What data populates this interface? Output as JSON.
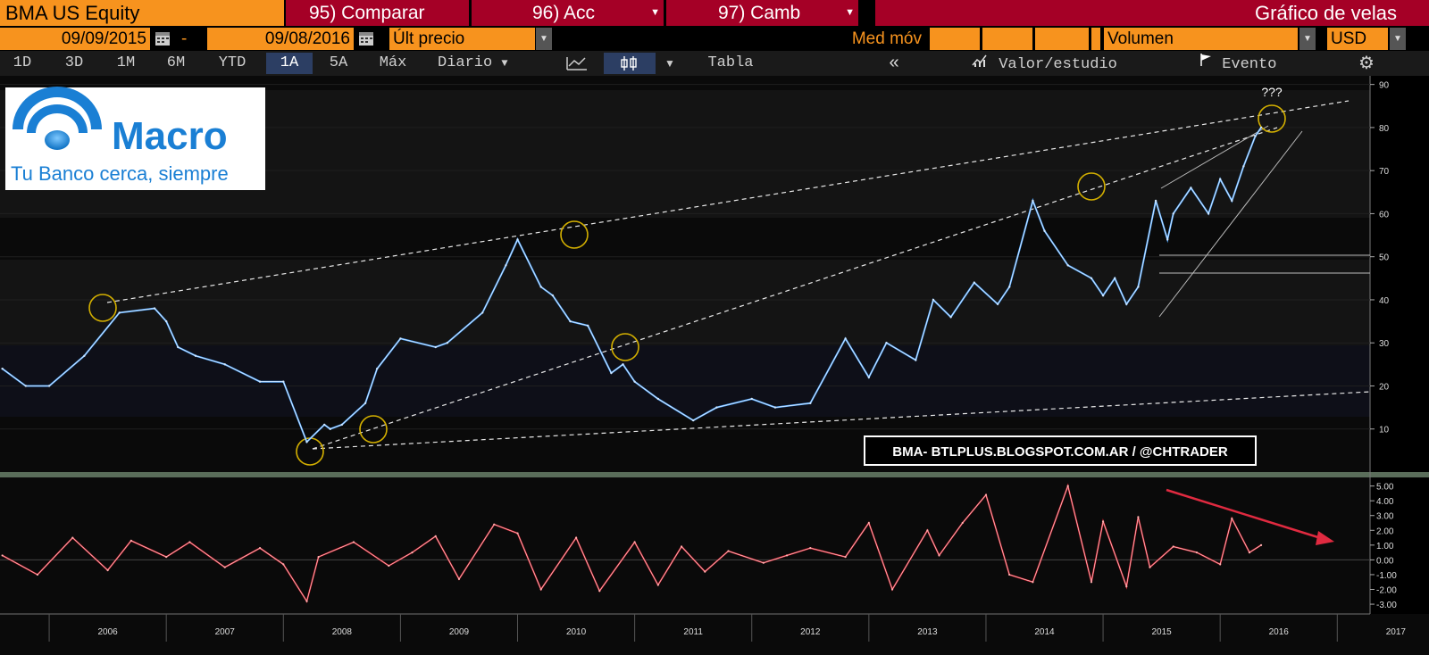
{
  "toolbar": {
    "ticker": "BMA US Equity",
    "compare": "95) Comparar",
    "acc": "96) Acc",
    "camb": "97) Camb",
    "chart_title": "Gráfico de velas",
    "date_start": "09/09/2015",
    "date_sep": "-",
    "date_end": "09/08/2016",
    "price_field": "Últ precio",
    "ma_label": "Med móv",
    "volume_label": "Volumen",
    "currency": "USD",
    "timeframes": [
      "1D",
      "3D",
      "1M",
      "6M",
      "YTD",
      "1A",
      "5A",
      "Máx"
    ],
    "active_timeframe": "1A",
    "period": "Diario",
    "table_label": "Tabla",
    "value_study": "Valor/estudio",
    "event": "Evento",
    "icons": [
      "calendar-icon",
      "line-chart-icon",
      "candle-chart-icon",
      "double-chevron-left-icon",
      "study-icon",
      "flag-icon",
      "gear-icon"
    ]
  },
  "logo": {
    "brand": "Macro",
    "slogan": "Tu Banco cerca, siempre"
  },
  "watermark": "BMA- BTLPLUS.BLOGSPOT.COM.AR / @CHTRADER",
  "annotation": "???",
  "colors": {
    "toolbar_orange": "#f7931e",
    "toolbar_red": "#a50026",
    "price_line": "#4aa3ff",
    "oscillator_line": "#e02030",
    "trendline": "#e8e8e8",
    "circle": "#d4b000"
  },
  "chart_data": [
    {
      "type": "line",
      "title": "",
      "x_ticks": [
        "2006",
        "2007",
        "2008",
        "2009",
        "2010",
        "2011",
        "2012",
        "2013",
        "2014",
        "2015",
        "2016",
        "2017"
      ],
      "y_ticks": [
        10,
        20,
        30,
        40,
        50,
        60,
        70,
        80,
        90
      ],
      "ylim": [
        0,
        92
      ],
      "xlim": [
        2005.58,
        2017.28
      ],
      "grid": true,
      "series": [
        {
          "x": [
            2005.6,
            2005.8,
            2006.0,
            2006.3,
            2006.6,
            2006.9,
            2007.0,
            2007.1,
            2007.25,
            2007.5,
            2007.8,
            2008.0,
            2008.2,
            2008.35,
            2008.4,
            2008.5,
            2008.7,
            2008.8,
            2009.0,
            2009.3,
            2009.4,
            2009.7,
            2009.9,
            2010.0,
            2010.2,
            2010.3,
            2010.45,
            2010.6,
            2010.8,
            2010.9,
            2011.0,
            2011.2,
            2011.5,
            2011.7,
            2012.0,
            2012.2,
            2012.5,
            2012.8,
            2013.0,
            2013.15,
            2013.4,
            2013.55,
            2013.7,
            2013.9,
            2014.1,
            2014.2,
            2014.4,
            2014.5,
            2014.7,
            2014.9,
            2015.0,
            2015.1,
            2015.2,
            2015.3,
            2015.45,
            2015.55,
            2015.6,
            2015.75,
            2015.9,
            2016.0,
            2016.1,
            2016.2,
            2016.3,
            2016.35
          ],
          "y": [
            24,
            20,
            20,
            27,
            37,
            38,
            35,
            29,
            27,
            25,
            21,
            21,
            7,
            11,
            10,
            11,
            16,
            24,
            31,
            29,
            30,
            37,
            48,
            54,
            43,
            41,
            35,
            34,
            23,
            25,
            21,
            17,
            12,
            15,
            17,
            15,
            16,
            31,
            22,
            30,
            26,
            40,
            36,
            44,
            39,
            43,
            63,
            56,
            48,
            45,
            41,
            45,
            39,
            43,
            63,
            54,
            60,
            66,
            60,
            68,
            63,
            71,
            78,
            80
          ]
        },
        {
          "x": [
            2005.6,
            2005.9,
            2006.2,
            2006.5,
            2006.7,
            2007.0,
            2007.2,
            2007.5,
            2007.8,
            2008.0,
            2008.2,
            2008.3,
            2008.6,
            2008.9,
            2009.1,
            2009.3,
            2009.5,
            2009.8,
            2010.0,
            2010.2,
            2010.5,
            2010.7,
            2011.0,
            2011.2,
            2011.4,
            2011.6,
            2011.8,
            2012.1,
            2012.3,
            2012.5,
            2012.8,
            2013.0,
            2013.2,
            2013.5,
            2013.6,
            2013.8,
            2014.0,
            2014.2,
            2014.4,
            2014.7,
            2014.9,
            2015.0,
            2015.2,
            2015.3,
            2015.4,
            2015.6,
            2015.8,
            2016.0,
            2016.1,
            2016.25,
            2016.35
          ],
          "y": [
            0.3,
            -1.0,
            1.5,
            -0.7,
            1.3,
            0.2,
            1.2,
            -0.5,
            0.8,
            -0.3,
            -2.8,
            0.2,
            1.2,
            -0.4,
            0.5,
            1.6,
            -1.3,
            2.4,
            1.8,
            -2.0,
            1.5,
            -2.1,
            1.2,
            -1.7,
            0.9,
            -0.8,
            0.6,
            -0.2,
            0.3,
            0.8,
            0.2,
            2.5,
            -2.0,
            2.0,
            0.3,
            2.5,
            4.4,
            -1.0,
            -1.5,
            5.0,
            -1.5,
            2.6,
            -1.8,
            2.9,
            -0.5,
            0.9,
            0.5,
            -0.3,
            2.8,
            0.5,
            1.0
          ]
        }
      ]
    }
  ]
}
